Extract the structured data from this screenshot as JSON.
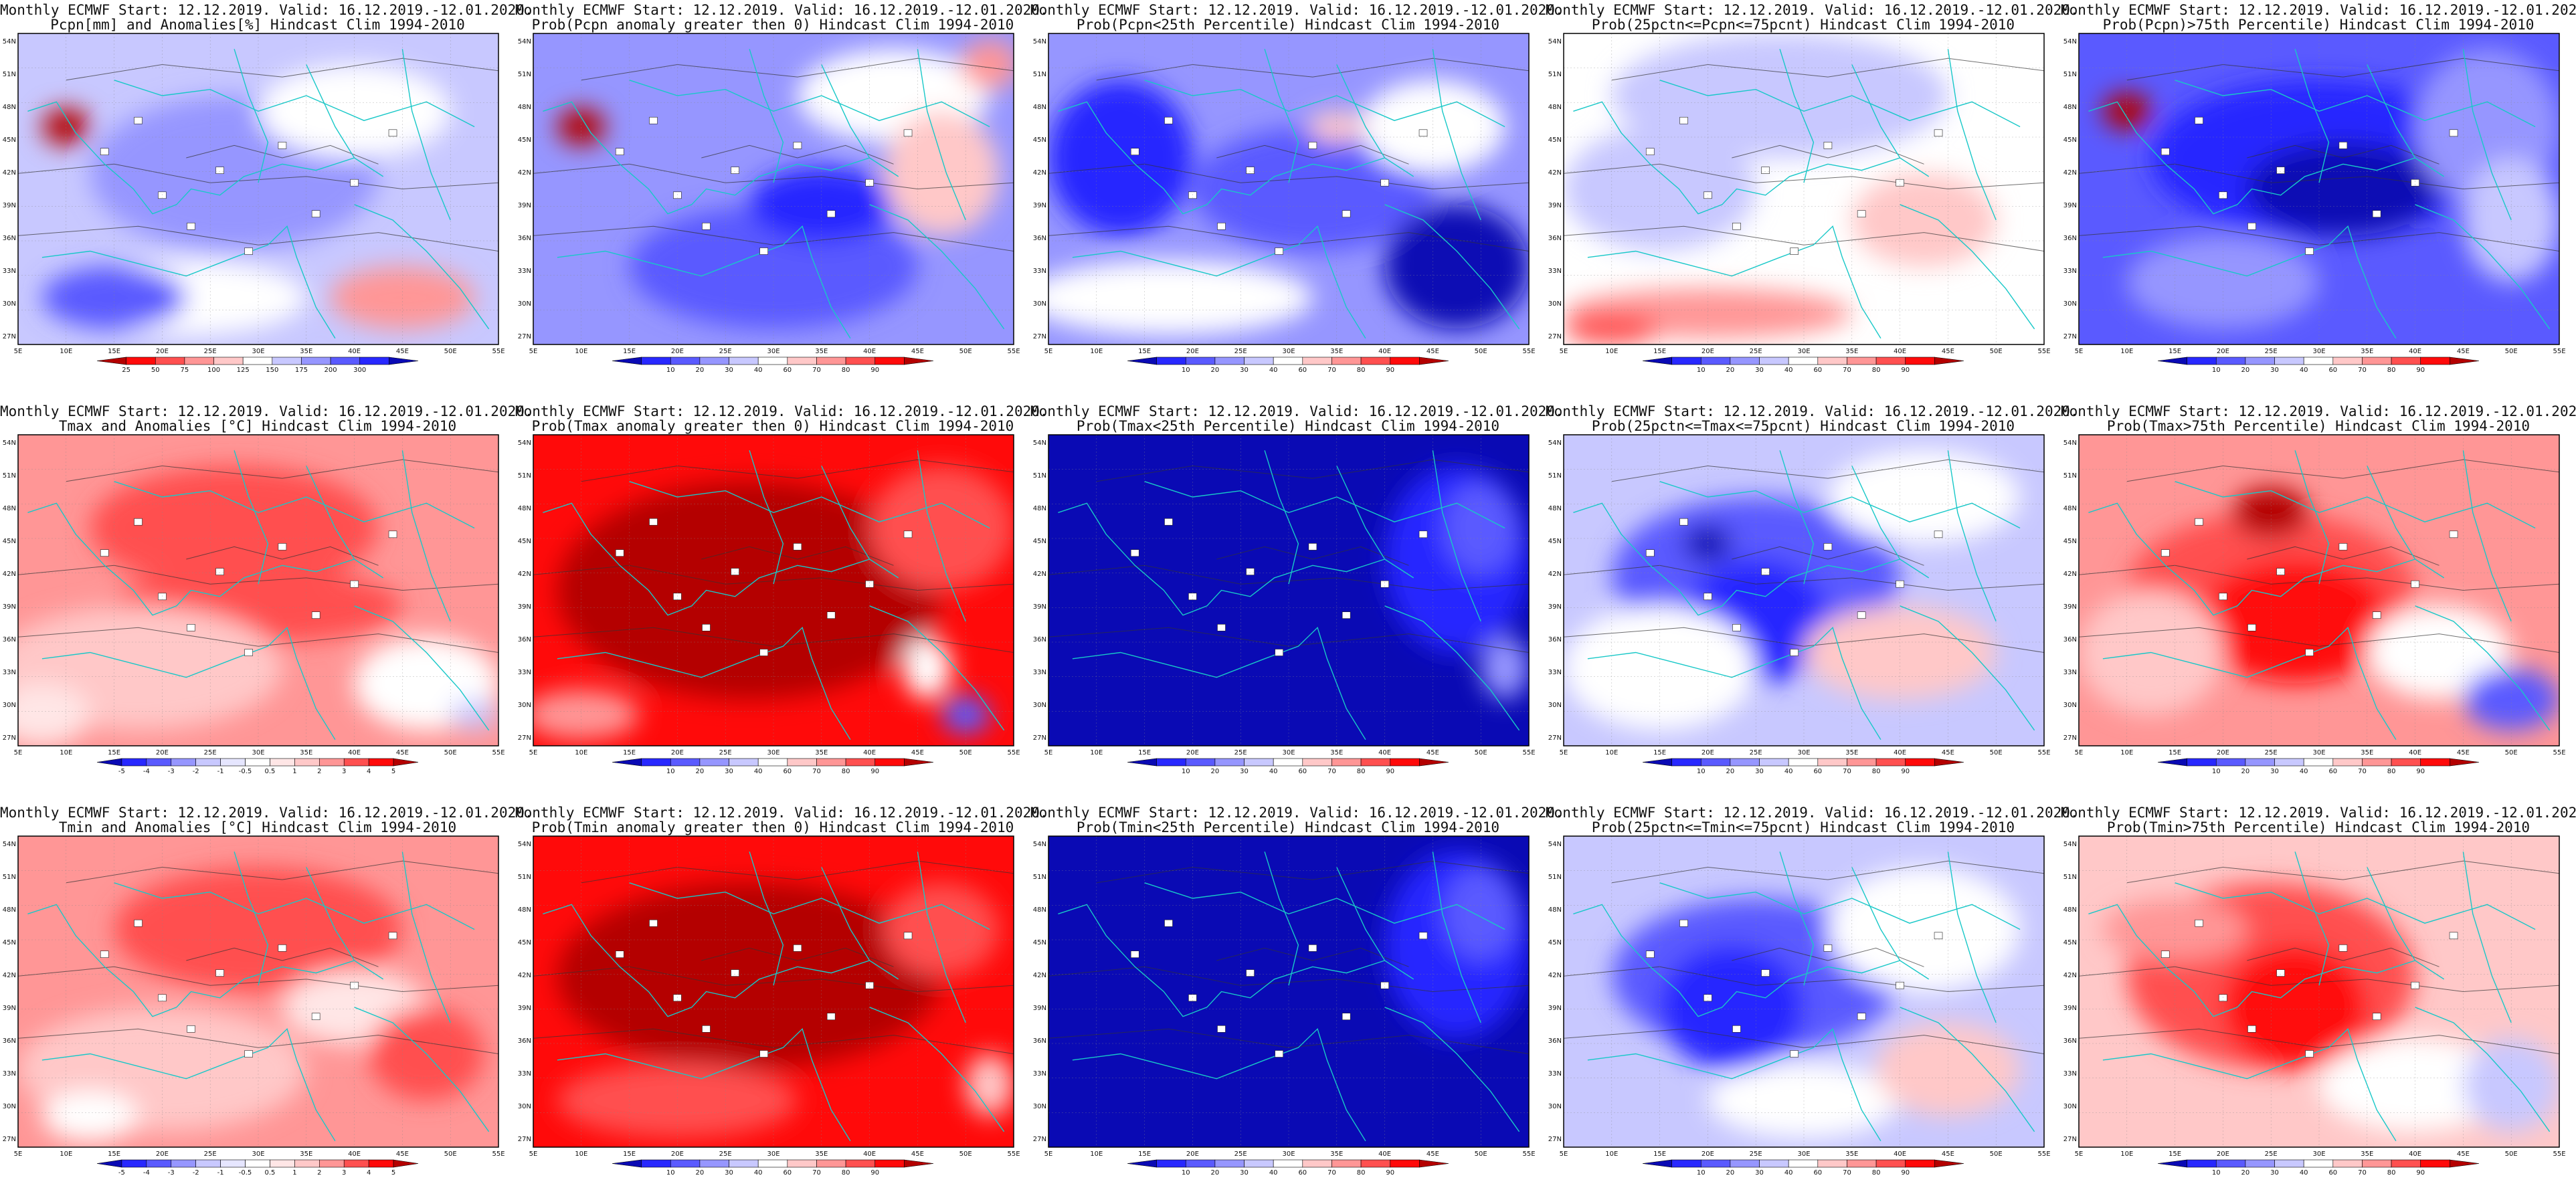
{
  "header_common": "Monthly ECMWF Start: 12.12.2019. Valid: 16.12.2019.-12.01.2020.",
  "subtitle_suffix": "Hindcast Clim 1994-2010",
  "lat_labels": [
    "54N",
    "51N",
    "48N",
    "45N",
    "42N",
    "39N",
    "36N",
    "33N",
    "30N",
    "27N"
  ],
  "lon_labels": [
    "5E",
    "10E",
    "15E",
    "20E",
    "25E",
    "30E",
    "35E",
    "40E",
    "45E",
    "50E",
    "55E"
  ],
  "colorbars": {
    "prob": {
      "labels": [
        "10",
        "20",
        "30",
        "40",
        "60",
        "70",
        "80",
        "90"
      ],
      "colors": [
        "#0a0ab4",
        "#2828ff",
        "#5a5aff",
        "#9696ff",
        "#c8c8ff",
        "#ffffff",
        "#ffc8c8",
        "#ff9696",
        "#ff5050",
        "#ff0a0a",
        "#b40000"
      ]
    },
    "pcpn": {
      "labels": [
        "25",
        "50",
        "75",
        "100",
        "125",
        "150",
        "175",
        "200",
        "300"
      ],
      "colors": [
        "#b40000",
        "#ff0a0a",
        "#ff5050",
        "#ff9696",
        "#ffc8c8",
        "#ffffff",
        "#c8c8ff",
        "#9696ff",
        "#5a5aff",
        "#2828ff",
        "#0a0ab4"
      ]
    },
    "temp": {
      "labels": [
        "-5",
        "-4",
        "-3",
        "-2",
        "-1",
        "-0.5",
        "0.5",
        "1",
        "2",
        "3",
        "4",
        "5"
      ],
      "colors": [
        "#0a0ab4",
        "#2828ff",
        "#5a5aff",
        "#9696ff",
        "#c8c8ff",
        "#e6e6ff",
        "#ffffff",
        "#ffe6e6",
        "#ffc8c8",
        "#ff9696",
        "#ff5050",
        "#ff0a0a",
        "#b40000"
      ]
    }
  },
  "panels": [
    {
      "subtitle": "Pcpn[mm] and Anomalies[%] Hindcast Clim 1994-2010",
      "cb": "pcpn",
      "base": "#c8c8ff",
      "blobs": [
        [
          "#9696ff",
          0.45,
          0.45,
          0.3,
          0.25
        ],
        [
          "#ffffff",
          0.35,
          0.85,
          0.25,
          0.12
        ],
        [
          "#ff9696",
          0.8,
          0.85,
          0.15,
          0.1
        ],
        [
          "#b40000",
          0.1,
          0.3,
          0.05,
          0.06
        ],
        [
          "#ffffff",
          0.7,
          0.25,
          0.2,
          0.15
        ],
        [
          "#5a5aff",
          0.2,
          0.85,
          0.15,
          0.1
        ]
      ]
    },
    {
      "subtitle": "Prob(Pcpn anomaly greater then 0) Hindcast Clim 1994-2010",
      "cb": "prob",
      "base": "#9696ff",
      "blobs": [
        [
          "#5a5aff",
          0.5,
          0.75,
          0.3,
          0.2
        ],
        [
          "#2828ff",
          0.6,
          0.55,
          0.15,
          0.12
        ],
        [
          "#ffffff",
          0.75,
          0.2,
          0.2,
          0.15
        ],
        [
          "#ffc8c8",
          0.85,
          0.45,
          0.12,
          0.2
        ],
        [
          "#b40000",
          0.1,
          0.3,
          0.05,
          0.06
        ],
        [
          "#ff9696",
          0.95,
          0.1,
          0.06,
          0.08
        ]
      ]
    },
    {
      "subtitle": "Prob(Pcpn<25th Percentile) Hindcast Clim 1994-2010",
      "cb": "prob",
      "base": "#9696ff",
      "blobs": [
        [
          "#ffffff",
          0.25,
          0.85,
          0.3,
          0.12
        ],
        [
          "#2828ff",
          0.15,
          0.4,
          0.15,
          0.25
        ],
        [
          "#5a5aff",
          0.55,
          0.5,
          0.25,
          0.2
        ],
        [
          "#ffffff",
          0.8,
          0.3,
          0.15,
          0.15
        ],
        [
          "#0a0ab4",
          0.85,
          0.75,
          0.15,
          0.2
        ],
        [
          "#ffc8c8",
          0.6,
          0.3,
          0.06,
          0.05
        ]
      ]
    },
    {
      "subtitle": "Prob(25pctn<=Pcpn<=75pcnt) Hindcast Clim 1994-2010",
      "cb": "prob",
      "base": "#ffffff",
      "blobs": [
        [
          "#c8c8ff",
          0.45,
          0.2,
          0.35,
          0.2
        ],
        [
          "#c8c8ff",
          0.2,
          0.5,
          0.2,
          0.2
        ],
        [
          "#ff9696",
          0.3,
          0.9,
          0.3,
          0.08
        ],
        [
          "#ffc8c8",
          0.75,
          0.6,
          0.15,
          0.15
        ],
        [
          "#ff5050",
          0.1,
          0.95,
          0.1,
          0.05
        ]
      ]
    },
    {
      "subtitle": "Prob(Pcpn)>75th Percentile) Hindcast Clim 1994-2010",
      "cb": "prob",
      "base": "#5a5aff",
      "blobs": [
        [
          "#2828ff",
          0.5,
          0.4,
          0.35,
          0.25
        ],
        [
          "#0a0ab4",
          0.55,
          0.5,
          0.2,
          0.15
        ],
        [
          "#9696ff",
          0.85,
          0.3,
          0.15,
          0.25
        ],
        [
          "#c8c8ff",
          0.9,
          0.6,
          0.1,
          0.2
        ],
        [
          "#b40000",
          0.1,
          0.25,
          0.05,
          0.06
        ],
        [
          "#9696ff",
          0.3,
          0.8,
          0.2,
          0.15
        ]
      ]
    },
    {
      "subtitle": "Tmax and Anomalies [°C] Hindcast Clim 1994-2010",
      "cb": "temp",
      "base": "#ff9696",
      "blobs": [
        [
          "#ff5050",
          0.45,
          0.3,
          0.3,
          0.2
        ],
        [
          "#ff5050",
          0.5,
          0.55,
          0.3,
          0.12
        ],
        [
          "#ffc8c8",
          0.25,
          0.75,
          0.3,
          0.2
        ],
        [
          "#ffffff",
          0.85,
          0.8,
          0.15,
          0.15
        ],
        [
          "#ffe6e6",
          0.05,
          0.9,
          0.1,
          0.1
        ],
        [
          "#c8c8ff",
          0.95,
          0.9,
          0.05,
          0.05
        ]
      ]
    },
    {
      "subtitle": "Prob(Tmax anomaly greater then 0) Hindcast Clim 1994-2010",
      "cb": "prob",
      "base": "#ff0a0a",
      "blobs": [
        [
          "#b40000",
          0.45,
          0.5,
          0.4,
          0.35
        ],
        [
          "#ff5050",
          0.85,
          0.3,
          0.15,
          0.2
        ],
        [
          "#ffffff",
          0.82,
          0.75,
          0.05,
          0.1
        ],
        [
          "#5a5aff",
          0.9,
          0.9,
          0.05,
          0.06
        ],
        [
          "#ff9696",
          0.1,
          0.9,
          0.12,
          0.08
        ]
      ]
    },
    {
      "subtitle": "Prob(Tmax<25th Percentile) Hindcast Clim 1994-2010",
      "cb": "prob",
      "base": "#0a0ab4",
      "blobs": [
        [
          "#2828ff",
          0.85,
          0.4,
          0.15,
          0.3
        ],
        [
          "#5a5aff",
          0.9,
          0.3,
          0.08,
          0.15
        ],
        [
          "#9696ff",
          0.95,
          0.75,
          0.05,
          0.1
        ]
      ]
    },
    {
      "subtitle": "Prob(25pctn<=Tmax<=75pcnt) Hindcast Clim 1994-2010",
      "cb": "prob",
      "base": "#c8c8ff",
      "blobs": [
        [
          "#5a5aff",
          0.4,
          0.45,
          0.3,
          0.25
        ],
        [
          "#2828ff",
          0.4,
          0.6,
          0.15,
          0.2
        ],
        [
          "#ffffff",
          0.2,
          0.75,
          0.2,
          0.2
        ],
        [
          "#ffc8c8",
          0.7,
          0.7,
          0.2,
          0.15
        ],
        [
          "#ffffff",
          0.75,
          0.2,
          0.2,
          0.15
        ],
        [
          "#0a0ab4",
          0.3,
          0.35,
          0.05,
          0.06
        ]
      ]
    },
    {
      "subtitle": "Prob(Tmax>75th Percentile) Hindcast Clim 1994-2010",
      "cb": "prob",
      "base": "#ff9696",
      "blobs": [
        [
          "#ff5050",
          0.4,
          0.5,
          0.3,
          0.25
        ],
        [
          "#ff0a0a",
          0.45,
          0.6,
          0.2,
          0.2
        ],
        [
          "#ffc8c8",
          0.15,
          0.7,
          0.15,
          0.2
        ],
        [
          "#ffffff",
          0.75,
          0.7,
          0.15,
          0.15
        ],
        [
          "#5a5aff",
          0.9,
          0.85,
          0.1,
          0.1
        ],
        [
          "#b40000",
          0.4,
          0.25,
          0.08,
          0.08
        ]
      ]
    },
    {
      "subtitle": "Tmin and Anomalies [°C] Hindcast Clim 1994-2010",
      "cb": "temp",
      "base": "#ff9696",
      "blobs": [
        [
          "#ff5050",
          0.5,
          0.3,
          0.3,
          0.2
        ],
        [
          "#ffc8c8",
          0.3,
          0.75,
          0.3,
          0.2
        ],
        [
          "#ffe6e6",
          0.7,
          0.55,
          0.15,
          0.12
        ],
        [
          "#ffffff",
          0.15,
          0.9,
          0.1,
          0.08
        ],
        [
          "#ff5050",
          0.85,
          0.7,
          0.12,
          0.15
        ]
      ]
    },
    {
      "subtitle": "Prob(Tmin anomaly greater then 0) Hindcast Clim 1994-2010",
      "cb": "prob",
      "base": "#ff0a0a",
      "blobs": [
        [
          "#b40000",
          0.45,
          0.45,
          0.4,
          0.3
        ],
        [
          "#ff5050",
          0.3,
          0.85,
          0.25,
          0.12
        ],
        [
          "#ff5050",
          0.85,
          0.3,
          0.12,
          0.15
        ],
        [
          "#ffc8c8",
          0.95,
          0.8,
          0.05,
          0.1
        ]
      ]
    },
    {
      "subtitle": "Prob(Tmin<25th Percentile) Hindcast Clim 1994-2010",
      "cb": "prob",
      "base": "#0a0ab4",
      "blobs": [
        [
          "#2828ff",
          0.85,
          0.35,
          0.15,
          0.3
        ],
        [
          "#5a5aff",
          0.9,
          0.25,
          0.08,
          0.15
        ]
      ]
    },
    {
      "subtitle": "Prob(25pctn<=Tmin<=75pcnt) Hindcast Clim 1994-2010",
      "cb": "prob",
      "base": "#c8c8ff",
      "blobs": [
        [
          "#5a5aff",
          0.4,
          0.45,
          0.3,
          0.25
        ],
        [
          "#2828ff",
          0.35,
          0.55,
          0.15,
          0.2
        ],
        [
          "#ffffff",
          0.75,
          0.3,
          0.2,
          0.2
        ],
        [
          "#ffffff",
          0.5,
          0.85,
          0.2,
          0.12
        ],
        [
          "#ffc8c8",
          0.8,
          0.75,
          0.15,
          0.15
        ]
      ]
    },
    {
      "subtitle": "Prob(Tmin>75th Percentile) Hindcast Clim 1994-2010",
      "cb": "prob",
      "base": "#ffc8c8",
      "blobs": [
        [
          "#ff5050",
          0.4,
          0.45,
          0.3,
          0.3
        ],
        [
          "#ff0a0a",
          0.45,
          0.55,
          0.15,
          0.2
        ],
        [
          "#ffffff",
          0.7,
          0.8,
          0.2,
          0.15
        ],
        [
          "#c8c8ff",
          0.9,
          0.8,
          0.1,
          0.15
        ],
        [
          "#ff9696",
          0.2,
          0.3,
          0.15,
          0.1
        ]
      ]
    }
  ]
}
